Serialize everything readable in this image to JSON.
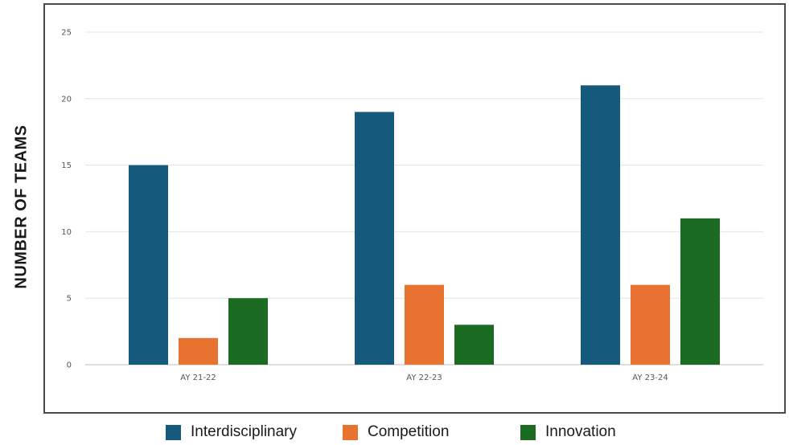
{
  "chart_data": {
    "type": "bar",
    "title": "",
    "xlabel": "",
    "ylabel": "NUMBER OF TEAMS",
    "categories": [
      "AY 21-22",
      "AY 22-23",
      "AY 23-24"
    ],
    "series": [
      {
        "name": "Interdisciplinary",
        "color": "#155a7c",
        "values": [
          15,
          19,
          21
        ]
      },
      {
        "name": "Competition",
        "color": "#e87230",
        "values": [
          2,
          6,
          6
        ]
      },
      {
        "name": "Innovation",
        "color": "#1b6b22",
        "values": [
          5,
          3,
          11
        ]
      }
    ],
    "ylim": [
      0,
      25
    ],
    "yticks": [
      0,
      5,
      10,
      15,
      20,
      25
    ],
    "grid": true,
    "legend": "bottom"
  }
}
